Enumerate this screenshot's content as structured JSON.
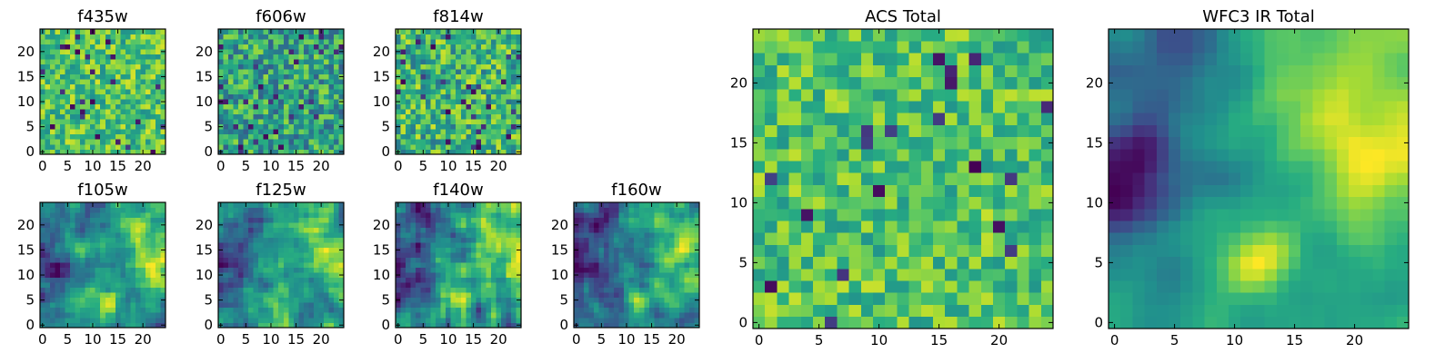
{
  "chart_data": [
    {
      "id": "f435w",
      "type": "heatmap",
      "title": "f435w",
      "xlabel": "",
      "ylabel": "",
      "xlim": [
        -0.5,
        24.5
      ],
      "ylim": [
        -0.5,
        24.5
      ],
      "xticks": [
        "0",
        "5",
        "10",
        "15",
        "20"
      ],
      "yticks": [
        "0",
        "5",
        "10",
        "15",
        "20"
      ],
      "grid": false,
      "colormap": "viridis",
      "description_of_values": "25x25 pixel cutout; values are noise-dominated with a mean near 0.7 of the color range"
    },
    {
      "id": "f606w",
      "type": "heatmap",
      "title": "f606w",
      "xlabel": "",
      "ylabel": "",
      "xlim": [
        -0.5,
        24.5
      ],
      "ylim": [
        -0.5,
        24.5
      ],
      "xticks": [
        "0",
        "5",
        "10",
        "15",
        "20"
      ],
      "yticks": [
        "0",
        "5",
        "10",
        "15",
        "20"
      ],
      "grid": false,
      "colormap": "viridis"
    },
    {
      "id": "f814w",
      "type": "heatmap",
      "title": "f814w",
      "xlabel": "",
      "ylabel": "",
      "xlim": [
        -0.5,
        24.5
      ],
      "ylim": [
        -0.5,
        24.5
      ],
      "xticks": [
        "0",
        "5",
        "10",
        "15",
        "20"
      ],
      "yticks": [
        "0",
        "5",
        "10",
        "15",
        "20"
      ],
      "grid": false,
      "colormap": "viridis"
    },
    {
      "id": "f105w",
      "type": "heatmap",
      "title": "f105w",
      "xlabel": "",
      "ylabel": "",
      "xlim": [
        -0.5,
        24.5
      ],
      "ylim": [
        -0.5,
        24.5
      ],
      "xticks": [
        "0",
        "5",
        "10",
        "15",
        "20"
      ],
      "yticks": [
        "0",
        "5",
        "10",
        "15",
        "20"
      ],
      "grid": false,
      "colormap": "viridis"
    },
    {
      "id": "f125w",
      "type": "heatmap",
      "title": "f125w",
      "xlabel": "",
      "ylabel": "",
      "xlim": [
        -0.5,
        24.5
      ],
      "ylim": [
        -0.5,
        24.5
      ],
      "xticks": [
        "0",
        "5",
        "10",
        "15",
        "20"
      ],
      "yticks": [
        "0",
        "5",
        "10",
        "15",
        "20"
      ],
      "grid": false,
      "colormap": "viridis"
    },
    {
      "id": "f140w",
      "type": "heatmap",
      "title": "f140w",
      "xlabel": "",
      "ylabel": "",
      "xlim": [
        -0.5,
        24.5
      ],
      "ylim": [
        -0.5,
        24.5
      ],
      "xticks": [
        "0",
        "5",
        "10",
        "15",
        "20"
      ],
      "yticks": [
        "0",
        "5",
        "10",
        "15",
        "20"
      ],
      "grid": false,
      "colormap": "viridis"
    },
    {
      "id": "f160w",
      "type": "heatmap",
      "title": "f160w",
      "xlabel": "",
      "ylabel": "",
      "xlim": [
        -0.5,
        24.5
      ],
      "ylim": [
        -0.5,
        24.5
      ],
      "xticks": [
        "0",
        "5",
        "10",
        "15",
        "20"
      ],
      "yticks": [
        "0",
        "5",
        "10",
        "15",
        "20"
      ],
      "grid": false,
      "colormap": "viridis"
    },
    {
      "id": "acs-total",
      "type": "heatmap",
      "title": "ACS Total",
      "xlabel": "",
      "ylabel": "",
      "xlim": [
        -0.5,
        24.5
      ],
      "ylim": [
        -0.5,
        24.5
      ],
      "xticks": [
        "0",
        "5",
        "10",
        "15",
        "20"
      ],
      "yticks": [
        "0",
        "5",
        "10",
        "15",
        "20"
      ],
      "grid": false,
      "colormap": "viridis"
    },
    {
      "id": "wfc3-ir-total",
      "type": "heatmap",
      "title": "WFC3 IR Total",
      "xlabel": "",
      "ylabel": "",
      "xlim": [
        -0.5,
        24.5
      ],
      "ylim": [
        -0.5,
        24.5
      ],
      "xticks": [
        "0",
        "5",
        "10",
        "15",
        "20"
      ],
      "yticks": [
        "0",
        "5",
        "10",
        "15",
        "20"
      ],
      "grid": false,
      "colormap": "viridis"
    }
  ]
}
